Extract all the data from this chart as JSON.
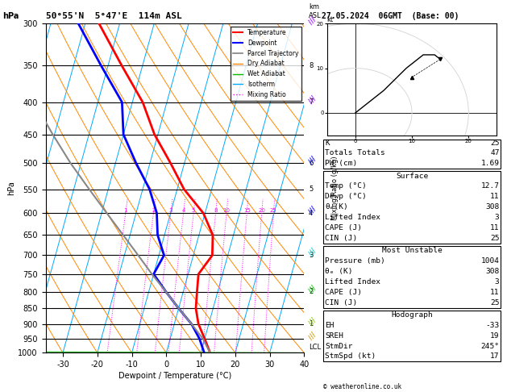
{
  "title_left": "50°55'N  5°47'E  114m ASL",
  "title_right": "27.05.2024  06GMT  (Base: 00)",
  "xlabel": "Dewpoint / Temperature (°C)",
  "ylabel_left": "hPa",
  "pressure_ticks": [
    300,
    350,
    400,
    450,
    500,
    550,
    600,
    650,
    700,
    750,
    800,
    850,
    900,
    950,
    1000
  ],
  "temp_min": -35,
  "temp_max": 40,
  "pres_min": 300,
  "pres_max": 1000,
  "skew": 22.0,
  "mixing_ratio_values": [
    1,
    2,
    3,
    4,
    5,
    8,
    10,
    15,
    20,
    25
  ],
  "temperature_profile": {
    "pressure": [
      1000,
      950,
      900,
      850,
      800,
      750,
      700,
      650,
      600,
      550,
      500,
      450,
      400,
      350,
      300
    ],
    "temp": [
      12.7,
      10.0,
      7.0,
      5.0,
      4.0,
      3.0,
      5.5,
      4.0,
      -0.5,
      -8.0,
      -14.0,
      -21.0,
      -27.0,
      -36.0,
      -46.0
    ]
  },
  "dewpoint_profile": {
    "pressure": [
      1000,
      950,
      900,
      850,
      800,
      750,
      700,
      650,
      600,
      550,
      500,
      450,
      400,
      350,
      300
    ],
    "temp": [
      11.0,
      8.5,
      5.0,
      0.0,
      -5.0,
      -10.0,
      -8.5,
      -12.0,
      -14.0,
      -18.0,
      -24.0,
      -30.0,
      -33.0,
      -42.0,
      -52.0
    ]
  },
  "parcel_profile": {
    "pressure": [
      1000,
      950,
      900,
      850,
      800,
      750,
      700,
      650,
      600,
      550,
      500,
      450,
      400,
      350,
      300
    ],
    "temp": [
      12.7,
      9.5,
      5.0,
      0.0,
      -5.0,
      -10.5,
      -16.0,
      -22.0,
      -28.5,
      -35.5,
      -43.0,
      -50.5,
      -58.5,
      -67.5,
      -77.0
    ]
  },
  "isotherm_color": "#00aaff",
  "dry_adiabat_color": "#ff8800",
  "wet_adiabat_color": "#00bb00",
  "mixing_ratio_color": "#ff00ff",
  "temp_color": "#ff0000",
  "dewpoint_color": "#0000ff",
  "parcel_color": "#888888",
  "km_map": {
    "350": "8",
    "400": "7",
    "500": "6",
    "550": "5",
    "600": "4",
    "700": "3",
    "800": "2",
    "900": "1",
    "980": "LCL"
  },
  "wind_pressures": [
    300,
    400,
    500,
    600,
    700,
    800,
    900,
    950
  ],
  "wind_colors": [
    "#9900ff",
    "#9900ff",
    "#0000ff",
    "#0000ff",
    "#00cccc",
    "#00cc00",
    "#88cc00",
    "#cc9900"
  ],
  "info_panel": {
    "K": 25,
    "Totals_Totals": 47,
    "PW_cm": 1.69,
    "Surface_Temp": 12.7,
    "Surface_Dewp": 11,
    "Surface_theta_e": 308,
    "Surface_Lifted_Index": 3,
    "Surface_CAPE": 11,
    "Surface_CIN": 25,
    "MU_Pressure": 1004,
    "MU_theta_e": 308,
    "MU_Lifted_Index": 3,
    "MU_CAPE": 11,
    "MU_CIN": 25,
    "EH": -33,
    "SREH": 19,
    "StmDir": 245,
    "StmSpd": 17
  }
}
